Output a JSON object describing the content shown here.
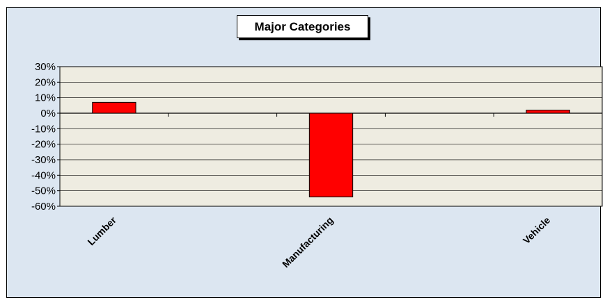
{
  "chart_data": {
    "type": "bar",
    "title": "Major Categories",
    "categories": [
      "Lumber",
      "",
      "Manufacturing",
      "",
      "Vehicle"
    ],
    "values": [
      7,
      null,
      -54,
      null,
      2
    ],
    "ytick_labels": [
      "30%",
      "20%",
      "10%",
      "0%",
      "-10%",
      "-20%",
      "-30%",
      "-40%",
      "-50%",
      "-60%"
    ],
    "ylim": [
      -60,
      30
    ],
    "grid": true,
    "legend": "none",
    "colors": {
      "bar": "#ff0000",
      "bar_stroke": "#000000",
      "plot_background": "#eeece1",
      "chart_background": "#dce6f1"
    }
  }
}
